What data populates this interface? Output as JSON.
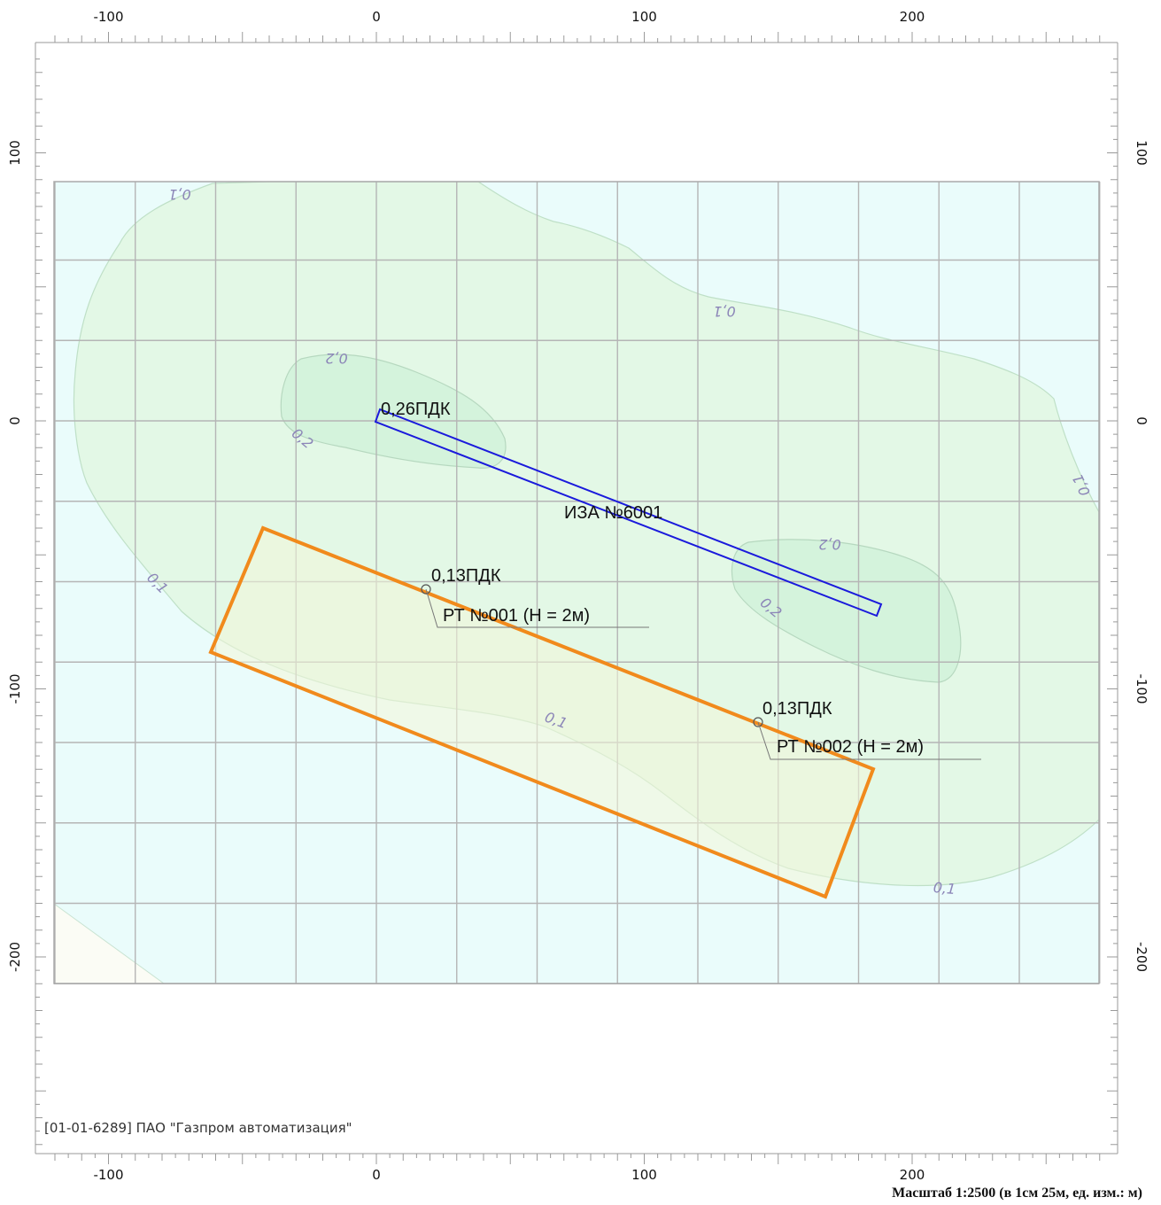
{
  "map": {
    "x_ticks": [
      "-100",
      "0",
      "100",
      "200"
    ],
    "y_ticks": [
      "100",
      "0",
      "-100",
      "-200"
    ],
    "contour_levels": {
      "low": "0,1",
      "high": "0,2"
    },
    "source": {
      "name": "ИЗА №6001",
      "value": "0,26ПДК"
    },
    "points": [
      {
        "name": "РТ №001 (Н = 2м)",
        "value": "0,13ПДК"
      },
      {
        "name": "РТ №002 (Н = 2м)",
        "value": "0,13ПДК"
      }
    ],
    "copyright": "[01-01-6289] ПАО \"Газпром автоматизация\"",
    "scale": "Масштаб 1:2500 (в 1см 25м, ед. изм.: м)",
    "colors": {
      "background": "#eafcfb",
      "zone_low": "#e3f8e6",
      "zone_high": "#d4f3dc",
      "contour_line": "#b9d9c2",
      "grid": "#b5b5b5",
      "source_outline": "#1a1adc",
      "area_outline": "#f18a1c"
    }
  }
}
